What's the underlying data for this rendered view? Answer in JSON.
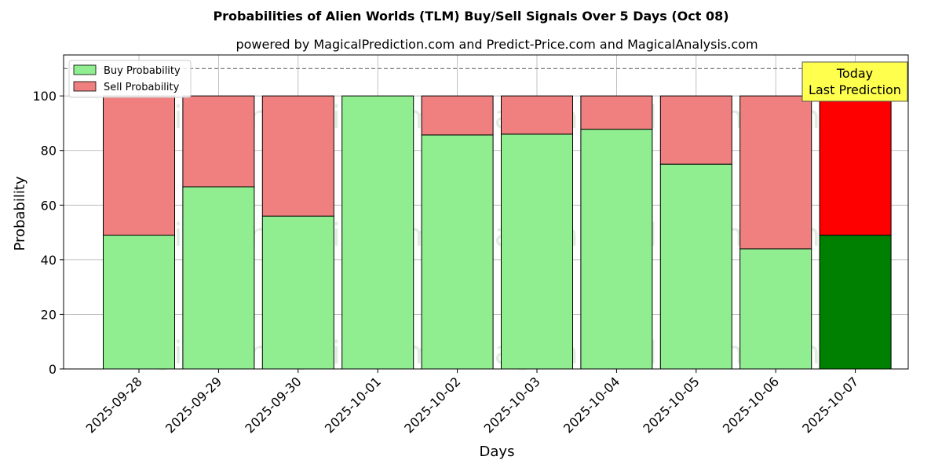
{
  "chart_data": {
    "type": "bar",
    "stacked": true,
    "title": "Probabilities of Alien Worlds (TLM) Buy/Sell Signals Over 5 Days (Oct 08)",
    "subtitle": "powered by MagicalPrediction.com and Predict-Price.com and MagicalAnalysis.com",
    "xlabel": "Days",
    "ylabel": "Probability",
    "ylim": [
      0,
      115
    ],
    "yticks": [
      0,
      20,
      40,
      60,
      80,
      100
    ],
    "grid": true,
    "legend_position": "top-left",
    "reference_line": 110,
    "categories": [
      "2025-09-28",
      "2025-09-29",
      "2025-09-30",
      "2025-10-01",
      "2025-10-02",
      "2025-10-03",
      "2025-10-04",
      "2025-10-05",
      "2025-10-06",
      "2025-10-07"
    ],
    "series": [
      {
        "name": "Buy Probability",
        "color": "#90ee90",
        "highlight_color": "#008000",
        "values": [
          49,
          66.7,
          56,
          100,
          85.7,
          86,
          87.8,
          75,
          44,
          49
        ]
      },
      {
        "name": "Sell Probability",
        "color": "#f08080",
        "highlight_color": "#ff0000",
        "values": [
          51,
          33.3,
          44,
          0,
          14.3,
          14,
          12.2,
          25,
          56,
          51
        ]
      }
    ],
    "highlight_index": 9,
    "annotation": {
      "line1": "Today",
      "line2": "Last Prediction",
      "color": "#ffff4d"
    },
    "watermarks": [
      "MagicalAnalysis.com",
      "MagicalPrediction.com"
    ]
  }
}
